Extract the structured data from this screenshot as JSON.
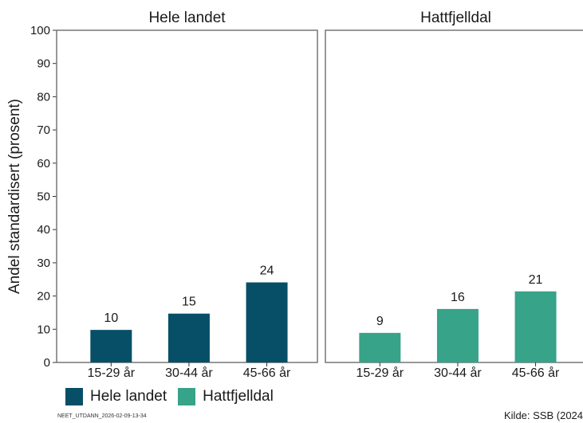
{
  "chart_data": {
    "type": "bar",
    "ylabel": "Andel standardisert (prosent)",
    "ylim": [
      0,
      100
    ],
    "yticks": [
      0,
      10,
      20,
      30,
      40,
      50,
      60,
      70,
      80,
      90,
      100
    ],
    "categories": [
      "15-29 år",
      "30-44 år",
      "45-66 år"
    ],
    "panels": [
      {
        "title": "Hele landet",
        "color": "#064f67",
        "values": [
          9.8,
          14.7,
          24.1
        ],
        "labels": [
          "10",
          "15",
          "24"
        ]
      },
      {
        "title": "Hattfjelldal",
        "color": "#37a389",
        "values": [
          8.9,
          16.1,
          21.4
        ],
        "labels": [
          "9",
          "16",
          "21"
        ]
      }
    ],
    "legend": [
      {
        "name": "Hele landet",
        "color": "#064f67"
      },
      {
        "name": "Hattfjelldal",
        "color": "#37a389"
      }
    ],
    "legend_position": "bottom-left",
    "grid": false
  },
  "footer": {
    "id_text": "NEET_UTDANN_2026-02-09-13-34",
    "source": "Kilde: SSB (2024"
  }
}
